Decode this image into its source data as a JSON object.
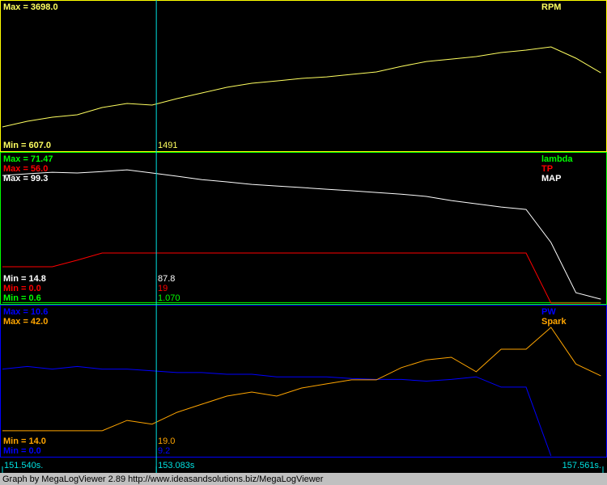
{
  "chart_data": [
    {
      "type": "line",
      "x": [
        151.54,
        151.79,
        152.04,
        152.29,
        152.54,
        152.79,
        153.04,
        153.29,
        153.54,
        153.79,
        154.04,
        154.29,
        154.54,
        154.79,
        155.04,
        155.29,
        155.54,
        155.79,
        156.04,
        156.29,
        156.54,
        156.79,
        157.04,
        157.29,
        157.54
      ],
      "xlim": [
        151.54,
        157.561
      ],
      "frame_color": "#ffff00",
      "series": [
        {
          "name": "RPM",
          "color": "#ffff60",
          "ylim": [
            -298,
            5446
          ],
          "max_label": "Max = 3698.0",
          "min_label": "Min = 607.0",
          "cursor_label": "1491",
          "values": [
            607,
            825,
            981,
            1075,
            1356,
            1512,
            1450,
            1700,
            1917,
            2136,
            2292,
            2385,
            2479,
            2541,
            2635,
            2729,
            2947,
            3134,
            3228,
            3322,
            3478,
            3572,
            3698,
            3260,
            2697
          ]
        }
      ]
    },
    {
      "type": "line",
      "x": [
        151.54,
        151.79,
        152.04,
        152.29,
        152.54,
        152.79,
        153.04,
        153.29,
        153.54,
        153.79,
        154.04,
        154.29,
        154.54,
        154.79,
        155.04,
        155.29,
        155.54,
        155.79,
        156.04,
        156.29,
        156.54,
        156.79,
        157.04,
        157.29,
        157.54
      ],
      "xlim": [
        151.54,
        157.561
      ],
      "frame_color": "#00ff00",
      "series": [
        {
          "name": "lambda",
          "color": "#00ff00",
          "ylim": [
            0.6,
            140
          ],
          "max_label": "Max = 71.47",
          "min_label": "Min = 0.6",
          "cursor_label": "1.070",
          "values": [
            1.07,
            1.07,
            1.07,
            1.07,
            1.07,
            1.07,
            1.07,
            1.07,
            1.07,
            1.07,
            1.07,
            1.07,
            1.07,
            1.07,
            1.07,
            1.07,
            1.07,
            1.07,
            1.07,
            1.07,
            1.07,
            1.07,
            1.07,
            1.07,
            1.07
          ]
        },
        {
          "name": "TP",
          "color": "#ff0000",
          "ylim": [
            0,
            167
          ],
          "max_label": "Max = 56.0",
          "min_label": "Min = 0.0",
          "cursor_label": "19",
          "values": [
            40.6,
            40.6,
            40.6,
            47.9,
            56,
            56,
            56,
            56,
            56,
            56,
            56,
            56,
            56,
            56,
            56,
            56,
            56,
            56,
            56,
            56,
            56,
            56,
            0,
            0,
            0
          ]
        },
        {
          "name": "MAP",
          "color": "#ffffff",
          "ylim": [
            12.2,
            109.9
          ],
          "max_label": "Max = 99.3",
          "min_label": "Min = 14.8",
          "cursor_label": "87.8",
          "values": [
            95.6,
            96.7,
            97.7,
            97.2,
            98.2,
            99.3,
            97.2,
            95.1,
            92.9,
            91.4,
            89.8,
            88.7,
            87.7,
            86.6,
            85.6,
            84.5,
            83.4,
            81.9,
            79.2,
            77.1,
            75.0,
            73.4,
            51.8,
            19.0,
            14.8
          ]
        }
      ]
    },
    {
      "type": "line",
      "x": [
        151.54,
        151.79,
        152.04,
        152.29,
        152.54,
        152.79,
        153.04,
        153.29,
        153.54,
        153.79,
        154.04,
        154.29,
        154.54,
        154.79,
        155.04,
        155.29,
        155.54,
        155.79,
        156.04,
        156.29,
        156.54,
        156.79,
        157.04,
        157.29,
        157.54
      ],
      "xlim": [
        151.54,
        157.561
      ],
      "frame_color": "#0000ff",
      "series": [
        {
          "name": "PW",
          "color": "#0000ff",
          "ylim": [
            0,
            17.4
          ],
          "max_label": "Max = 10.6",
          "min_label": "Min = 0.0",
          "cursor_label": "9.2",
          "values": [
            10.1,
            10.4,
            10.1,
            10.4,
            10.1,
            10.1,
            9.9,
            9.7,
            9.7,
            9.5,
            9.5,
            9.2,
            9.2,
            9.2,
            9.0,
            8.9,
            8.9,
            8.7,
            8.9,
            9.2,
            8.0,
            8.0,
            0,
            null,
            null
          ]
        },
        {
          "name": "Spark",
          "color": "#ffa500",
          "ylim": [
            7.2,
            47.7
          ],
          "max_label": "Max = 42.0",
          "min_label": "Min = 14.0",
          "cursor_label": "19.0",
          "values": [
            14,
            14,
            14,
            14,
            14,
            16.8,
            15.8,
            19.0,
            21.2,
            23.4,
            24.5,
            23.4,
            25.6,
            26.7,
            27.8,
            27.8,
            31.1,
            33.2,
            33.9,
            30.0,
            36.1,
            36.1,
            42,
            32.1,
            28.9
          ]
        }
      ]
    }
  ],
  "time_axis": {
    "xlim": [
      151.54,
      157.561
    ],
    "color": "#00e0e0",
    "xticks": [
      {
        "value": 151.54,
        "label": "151.540s."
      },
      {
        "value": 153.083,
        "label": "153.083s"
      },
      {
        "value": 157.561,
        "label": "157.561s."
      }
    ],
    "cursor_tick": 1
  },
  "footer": "Graph by MegaLogViewer 2.89 http://www.ideasandsolutions.biz/MegaLogViewer"
}
